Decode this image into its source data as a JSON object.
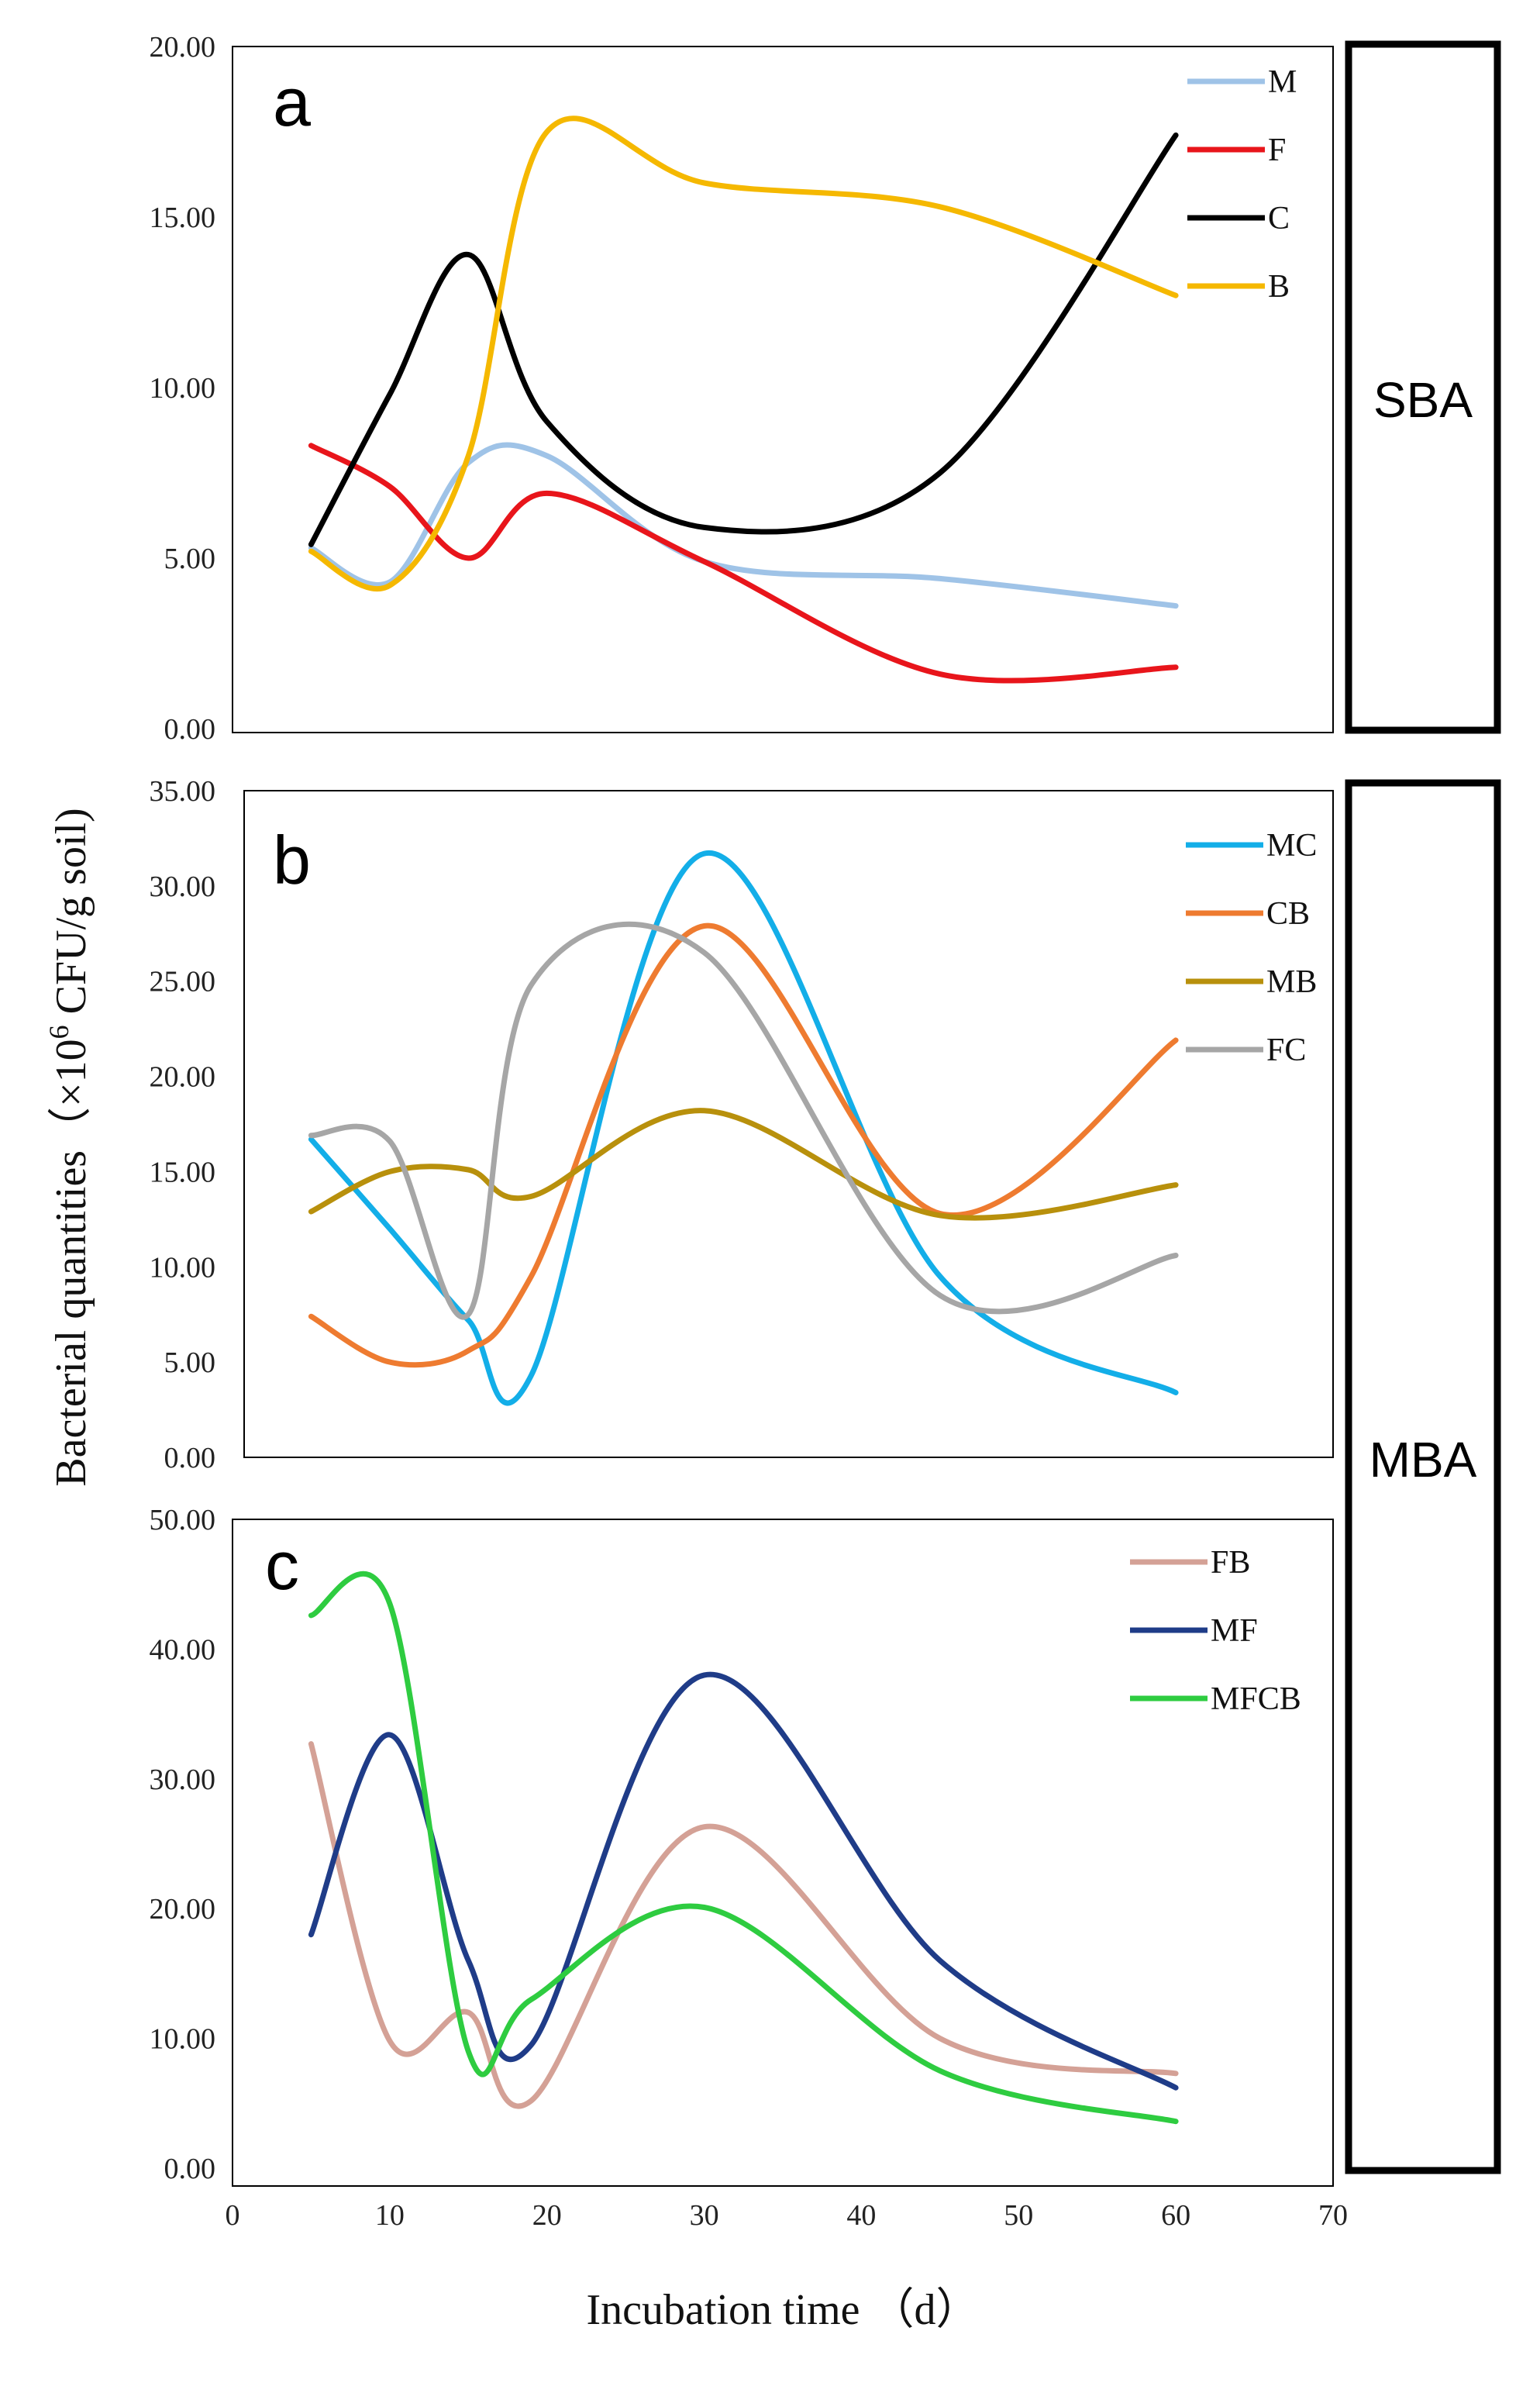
{
  "chart_data": [
    {
      "type": "line",
      "panel_label": "a",
      "x": [
        5,
        10,
        15,
        20,
        30,
        45,
        60
      ],
      "ylim": [
        0,
        20
      ],
      "yticks": [
        "0.00",
        "5.00",
        "10.00",
        "15.00",
        "20.00"
      ],
      "series": [
        {
          "name": "M",
          "color": "#9fc3e7",
          "values": [
            5.3,
            4.3,
            7.8,
            8.0,
            4.9,
            4.4,
            3.6
          ]
        },
        {
          "name": "F",
          "color": "#e8151b",
          "values": [
            8.3,
            7.1,
            5.0,
            6.9,
            4.9,
            1.6,
            1.8
          ]
        },
        {
          "name": "C",
          "color": "#000000",
          "values": [
            5.4,
            9.8,
            13.9,
            9.0,
            5.9,
            7.5,
            17.4
          ]
        },
        {
          "name": "B",
          "color": "#f5b800",
          "values": [
            5.2,
            4.2,
            8.0,
            17.5,
            16.0,
            15.3,
            12.7
          ]
        }
      ]
    },
    {
      "type": "line",
      "panel_label": "b",
      "x": [
        5,
        10,
        15,
        19,
        30,
        45,
        60
      ],
      "ylim": [
        0,
        35
      ],
      "yticks": [
        "0.00",
        "5.00",
        "10.00",
        "15.00",
        "20.00",
        "25.00",
        "30.00",
        "35.00"
      ],
      "series": [
        {
          "name": "MC",
          "color": "#13aee8",
          "values": [
            16.7,
            12.0,
            7.2,
            4.3,
            31.7,
            9.5,
            3.4
          ]
        },
        {
          "name": "CB",
          "color": "#ee7b30",
          "values": [
            7.4,
            5.0,
            5.6,
            9.5,
            27.9,
            12.8,
            21.9
          ]
        },
        {
          "name": "MB",
          "color": "#b8900c",
          "values": [
            12.9,
            15.0,
            15.1,
            13.7,
            18.2,
            12.7,
            14.3
          ]
        },
        {
          "name": "FC",
          "color": "#a6a6a6",
          "values": [
            16.9,
            16.6,
            7.5,
            24.8,
            26.5,
            8.5,
            10.6
          ]
        }
      ]
    },
    {
      "type": "line",
      "panel_label": "c",
      "x": [
        5,
        10,
        15,
        19,
        30,
        45,
        60
      ],
      "ylim": [
        0,
        50
      ],
      "yticks": [
        "0.00",
        "10.00",
        "20.00",
        "30.00",
        "40.00",
        "50.00"
      ],
      "xlim": [
        0,
        70
      ],
      "xticks": [
        "0",
        "10",
        "20",
        "30",
        "40",
        "50",
        "60",
        "70"
      ],
      "series": [
        {
          "name": "FB",
          "color": "#d4a196",
          "values": [
            32.7,
            9.8,
            12.0,
            5.2,
            26.3,
            10.0,
            7.3
          ]
        },
        {
          "name": "MF",
          "color": "#1f3c88",
          "values": [
            18.0,
            33.4,
            16.0,
            9.5,
            38.0,
            16.0,
            6.2
          ]
        },
        {
          "name": "MFCB",
          "color": "#2ecc40",
          "values": [
            42.6,
            43.5,
            9.0,
            13.0,
            20.1,
            7.5,
            3.6
          ]
        }
      ]
    }
  ],
  "side_labels": {
    "top": "SBA",
    "bottom": "MBA"
  },
  "ylabel": {
    "main": "Bacterial quantities（×10",
    "sup": "6",
    "rest": " CFU/g soil)"
  },
  "xlabel": "Incubation time （d）"
}
